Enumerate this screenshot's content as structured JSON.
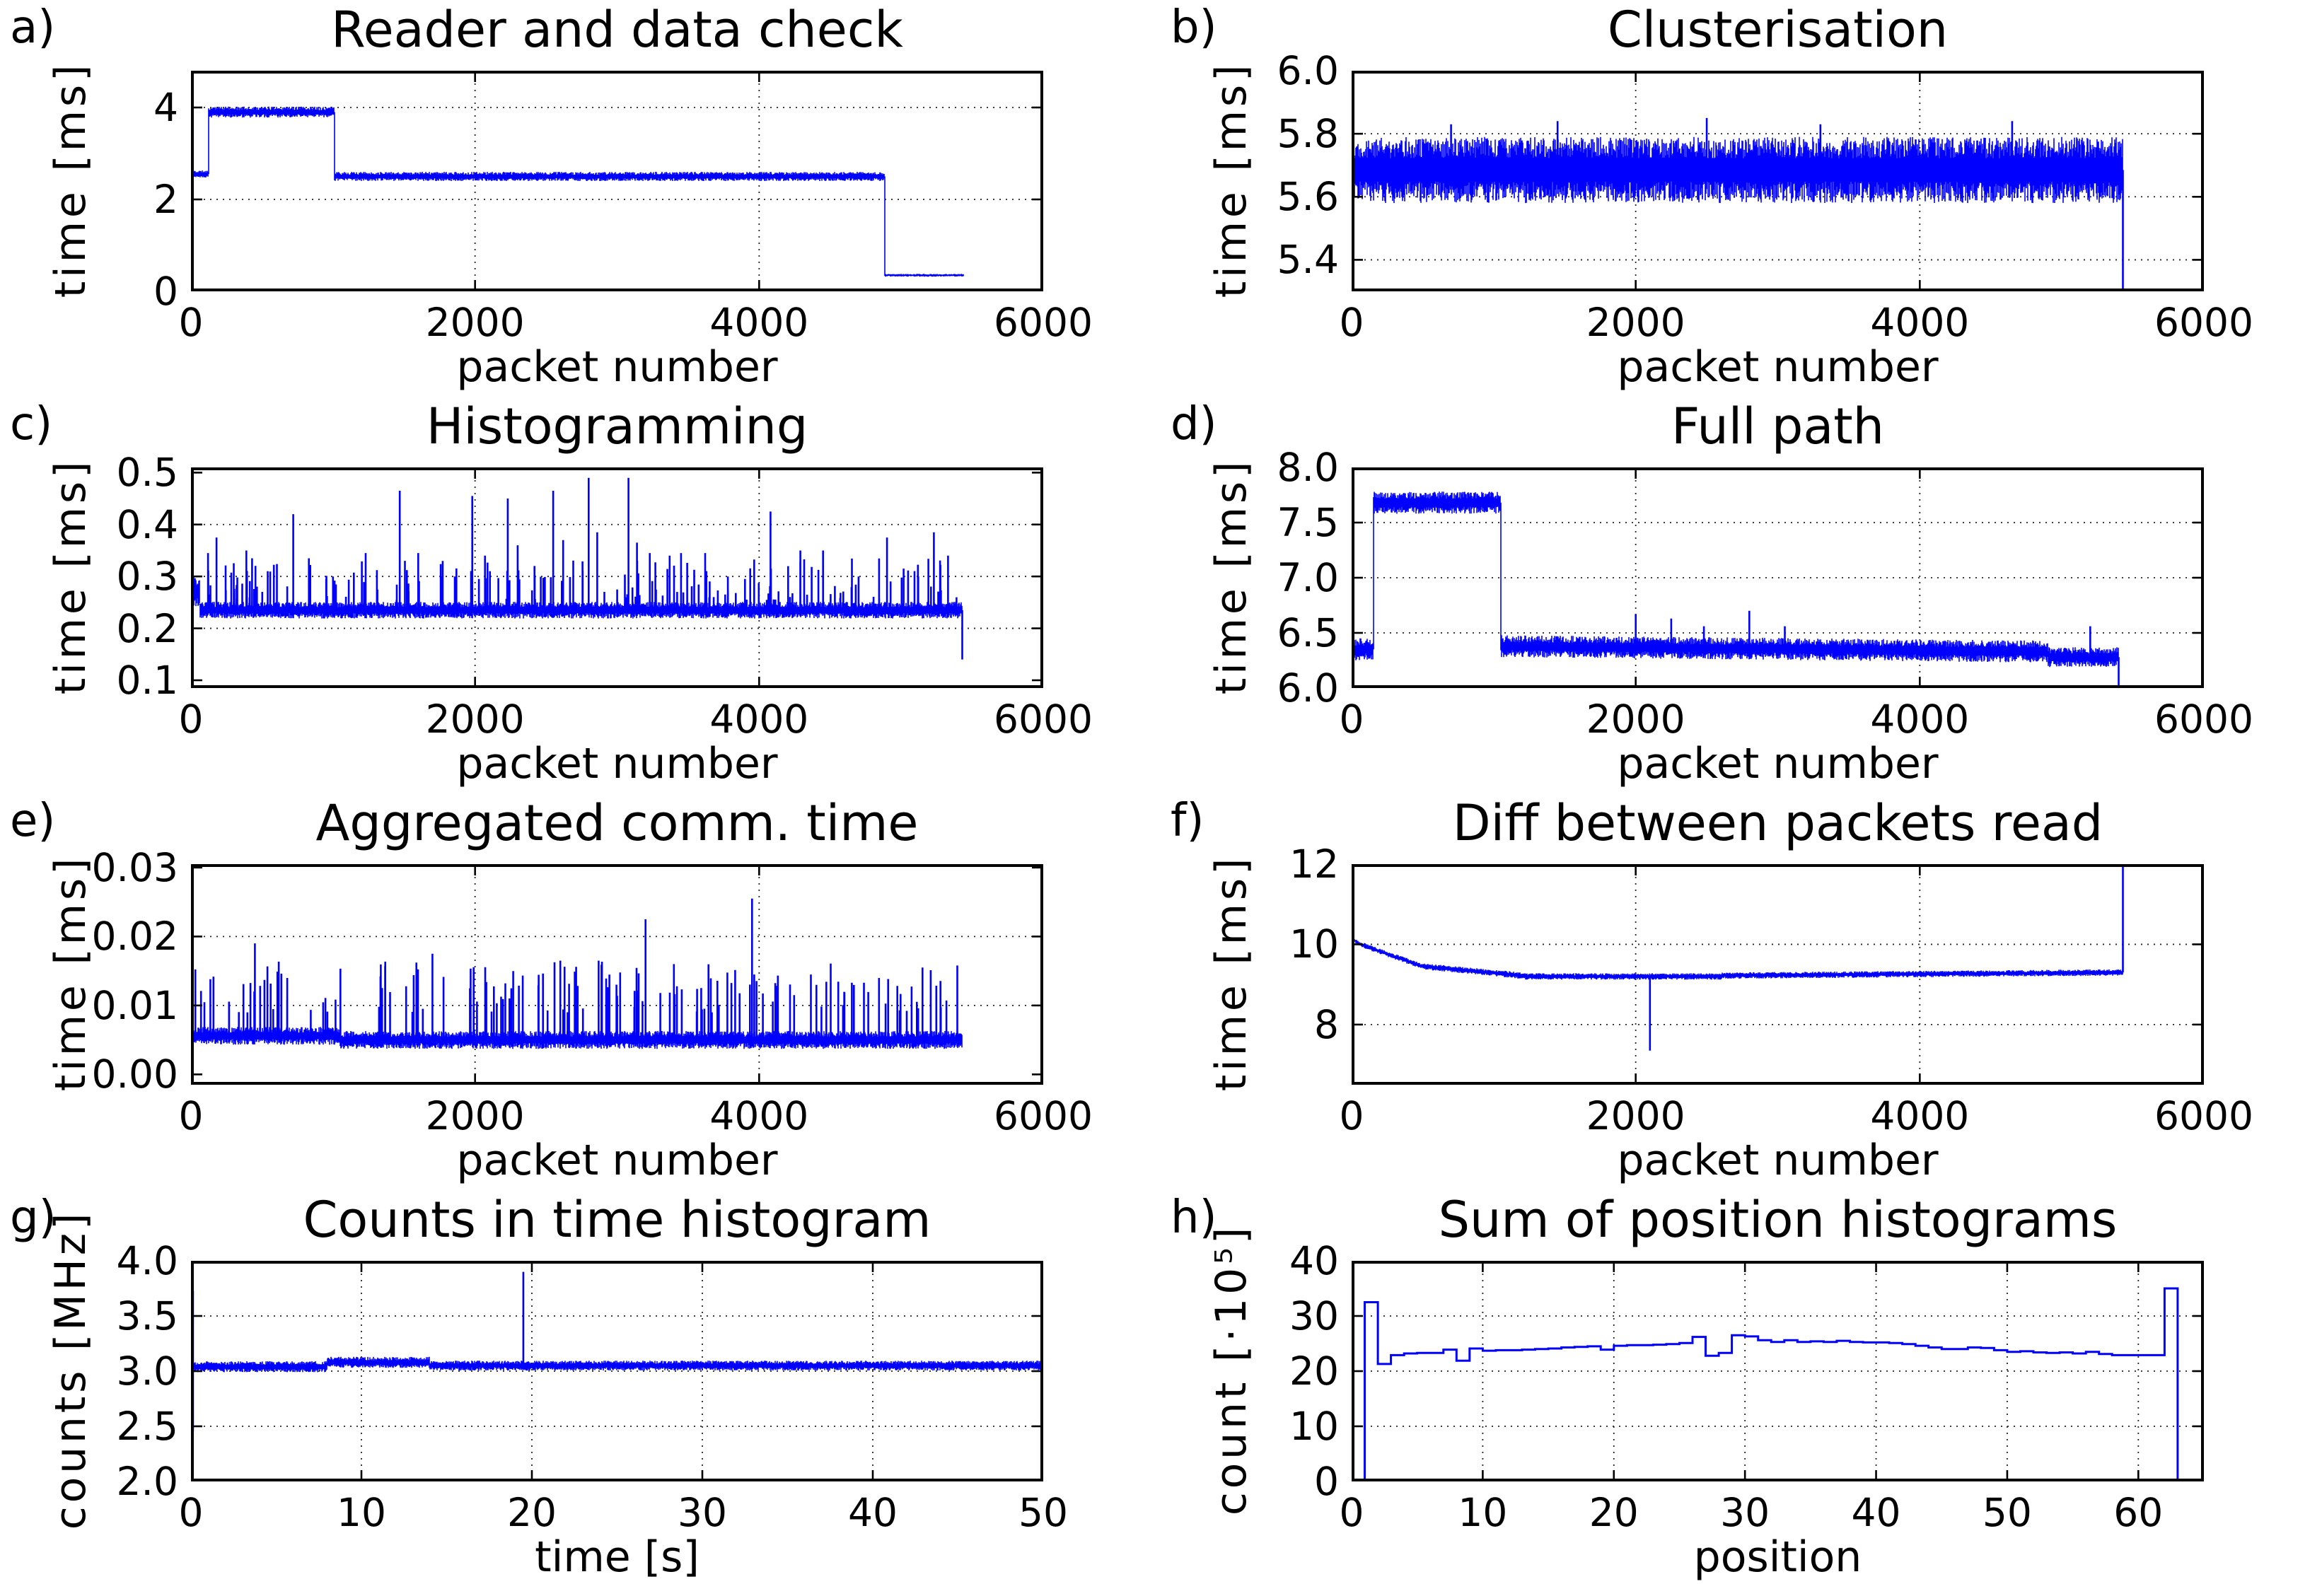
{
  "figure": {
    "background": "#ffffff",
    "line_color": "#0000ff",
    "axis_color": "#000000",
    "grid_color": "#000000",
    "text_color": "#000000"
  },
  "chart_data": [
    {
      "id": "a",
      "panel_label": "a)",
      "type": "line",
      "title": "Reader and data check",
      "xlabel": "packet number",
      "ylabel": "time [ms]",
      "xlim": [
        0,
        6000
      ],
      "ylim": [
        0,
        4.8
      ],
      "xticks": {
        "values": [
          0,
          2000,
          4000,
          6000
        ],
        "labels": [
          "0",
          "2000",
          "4000",
          "6000"
        ]
      },
      "yticks": {
        "values": [
          0,
          2,
          4
        ],
        "labels": [
          "0",
          "2",
          "4"
        ]
      },
      "xgrid": [
        2000,
        4000
      ],
      "ygrid": [
        2,
        4
      ],
      "seed": 11,
      "segments": [
        {
          "x0": 0,
          "x1": 120,
          "mean": 2.55,
          "amp": 0.08
        },
        {
          "x0": 120,
          "x1": 1010,
          "mean": 3.9,
          "amp": 0.12
        },
        {
          "x0": 1010,
          "x1": 4880,
          "mean": 2.5,
          "amp": 0.1
        },
        {
          "x0": 4880,
          "x1": 5440,
          "mean": 0.35,
          "amp": 0.03
        }
      ],
      "spikes": []
    },
    {
      "id": "b",
      "panel_label": "b)",
      "type": "line",
      "title": "Clusterisation",
      "xlabel": "packet number",
      "ylabel": "time [ms]",
      "xlim": [
        0,
        6000
      ],
      "ylim": [
        5.3,
        6.0
      ],
      "xticks": {
        "values": [
          0,
          2000,
          4000,
          6000
        ],
        "labels": [
          "0",
          "2000",
          "4000",
          "6000"
        ]
      },
      "yticks": {
        "values": [
          5.4,
          5.6,
          5.8,
          6.0
        ],
        "labels": [
          "5.4",
          "5.6",
          "5.8",
          "6.0"
        ]
      },
      "xgrid": [
        2000,
        4000
      ],
      "ygrid": [
        5.4,
        5.6,
        5.8
      ],
      "seed": 22,
      "segments": [
        {
          "x0": 0,
          "x1": 5430,
          "mean": 5.685,
          "amp": 0.105
        }
      ],
      "spikes": [
        [
          700,
          5.83
        ],
        [
          1450,
          5.84
        ],
        [
          2500,
          5.85
        ],
        [
          3300,
          5.83
        ],
        [
          4650,
          5.84
        ]
      ],
      "end_drop": [
        5430,
        5.3
      ]
    },
    {
      "id": "c",
      "panel_label": "c)",
      "type": "line",
      "title": "Histogramming",
      "xlabel": "packet number",
      "ylabel": "time [ms]",
      "xlim": [
        0,
        6000
      ],
      "ylim": [
        0.085,
        0.51
      ],
      "xticks": {
        "values": [
          0,
          2000,
          4000,
          6000
        ],
        "labels": [
          "0",
          "2000",
          "4000",
          "6000"
        ]
      },
      "yticks": {
        "values": [
          0.1,
          0.2,
          0.3,
          0.4,
          0.5
        ],
        "labels": [
          "0.1",
          "0.2",
          "0.3",
          "0.4",
          "0.5"
        ]
      },
      "xgrid": [
        2000,
        4000
      ],
      "ygrid": [
        0.2,
        0.3,
        0.4
      ],
      "seed": 33,
      "segments": [
        {
          "x0": 0,
          "x1": 60,
          "mean": 0.27,
          "amp": 0.03
        },
        {
          "x0": 60,
          "x1": 5430,
          "mean": 0.235,
          "amp": 0.016
        }
      ],
      "minor_spikes": {
        "count": 150,
        "x0": 60,
        "x1": 5390,
        "ymin": 0.255,
        "ymax": 0.335
      },
      "spikes": [
        [
          120,
          0.345
        ],
        [
          180,
          0.375
        ],
        [
          390,
          0.35
        ],
        [
          430,
          0.335
        ],
        [
          540,
          0.31
        ],
        [
          720,
          0.42
        ],
        [
          830,
          0.335
        ],
        [
          1000,
          0.3
        ],
        [
          1230,
          0.345
        ],
        [
          1470,
          0.465
        ],
        [
          1600,
          0.345
        ],
        [
          1760,
          0.3
        ],
        [
          1980,
          0.455
        ],
        [
          2070,
          0.34
        ],
        [
          2230,
          0.45
        ],
        [
          2300,
          0.36
        ],
        [
          2420,
          0.3
        ],
        [
          2550,
          0.465
        ],
        [
          2620,
          0.37
        ],
        [
          2800,
          0.49
        ],
        [
          2860,
          0.385
        ],
        [
          3080,
          0.49
        ],
        [
          3140,
          0.365
        ],
        [
          3230,
          0.345
        ],
        [
          3370,
          0.34
        ],
        [
          3450,
          0.345
        ],
        [
          3620,
          0.345
        ],
        [
          3780,
          0.3
        ],
        [
          3900,
          0.295
        ],
        [
          4080,
          0.425
        ],
        [
          4290,
          0.35
        ],
        [
          4450,
          0.35
        ],
        [
          4700,
          0.3
        ],
        [
          4900,
          0.375
        ],
        [
          5120,
          0.3
        ],
        [
          5230,
          0.385
        ],
        [
          5330,
          0.34
        ]
      ],
      "end_drop": [
        5430,
        0.14
      ]
    },
    {
      "id": "d",
      "panel_label": "d)",
      "type": "line",
      "title": "Full path",
      "xlabel": "packet number",
      "ylabel": "time [ms]",
      "xlim": [
        0,
        6000
      ],
      "ylim": [
        6.0,
        8.0
      ],
      "xticks": {
        "values": [
          0,
          2000,
          4000,
          6000
        ],
        "labels": [
          "0",
          "2000",
          "4000",
          "6000"
        ]
      },
      "yticks": {
        "values": [
          6.0,
          6.5,
          7.0,
          7.5,
          8.0
        ],
        "labels": [
          "6.0",
          "6.5",
          "7.0",
          "7.5",
          "8.0"
        ]
      },
      "xgrid": [
        2000,
        4000
      ],
      "ygrid": [
        6.5,
        7.0,
        7.5
      ],
      "seed": 44,
      "segments": [
        {
          "x0": 0,
          "x1": 150,
          "mean": 6.35,
          "amp": 0.1
        },
        {
          "x0": 150,
          "x1": 1050,
          "mean": 7.68,
          "amp": 0.1
        },
        {
          "x0": 1050,
          "x1": 4900,
          "mean_from": 6.38,
          "mean_to": 6.33,
          "amp": 0.1
        },
        {
          "x0": 4900,
          "x1": 5400,
          "mean": 6.28,
          "amp": 0.09
        }
      ],
      "spikes": [
        [
          2000,
          6.67
        ],
        [
          2250,
          6.63
        ],
        [
          2480,
          6.56
        ],
        [
          2800,
          6.7
        ],
        [
          3050,
          6.56
        ],
        [
          5200,
          6.56
        ]
      ],
      "end_drop": [
        5400,
        6.0
      ]
    },
    {
      "id": "e",
      "panel_label": "e)",
      "type": "line",
      "title": "Aggregated comm. time",
      "xlabel": "packet number",
      "ylabel": "time [ms]",
      "xlim": [
        0,
        6000
      ],
      "ylim": [
        -0.0015,
        0.0305
      ],
      "xticks": {
        "values": [
          0,
          2000,
          4000,
          6000
        ],
        "labels": [
          "0",
          "2000",
          "4000",
          "6000"
        ]
      },
      "yticks": {
        "values": [
          0.0,
          0.01,
          0.02,
          0.03
        ],
        "labels": [
          "0.00",
          "0.01",
          "0.02",
          "0.03"
        ]
      },
      "xgrid": [
        2000,
        4000
      ],
      "ygrid": [
        0.01,
        0.02
      ],
      "seed": 55,
      "segments": [
        {
          "x0": 0,
          "x1": 1050,
          "mean": 0.0056,
          "amp": 0.0013
        },
        {
          "x0": 1050,
          "x1": 5430,
          "mean": 0.005,
          "amp": 0.0013
        }
      ],
      "minor_spikes": {
        "count": 150,
        "x0": 20,
        "x1": 5420,
        "ymin": 0.009,
        "ymax": 0.0165
      },
      "spikes": [
        [
          450,
          0.019
        ],
        [
          1700,
          0.0175
        ],
        [
          2600,
          0.0165
        ],
        [
          2870,
          0.0165
        ],
        [
          3200,
          0.0225
        ],
        [
          3400,
          0.016
        ],
        [
          3950,
          0.0255
        ],
        [
          5150,
          0.0155
        ]
      ]
    },
    {
      "id": "f",
      "panel_label": "f)",
      "type": "line",
      "title": "Diff between packets read",
      "xlabel": "packet number",
      "ylabel": "time [ms]",
      "xlim": [
        0,
        6000
      ],
      "ylim": [
        6.5,
        12
      ],
      "xticks": {
        "values": [
          0,
          2000,
          4000,
          6000
        ],
        "labels": [
          "0",
          "2000",
          "4000",
          "6000"
        ]
      },
      "yticks": {
        "values": [
          8,
          10,
          12
        ],
        "labels": [
          "8",
          "10",
          "12"
        ]
      },
      "xgrid": [
        2000,
        4000
      ],
      "ygrid": [
        8,
        10
      ],
      "seed": 66,
      "segments": [
        {
          "x0": 0,
          "x1": 60,
          "mean_from": 10.15,
          "mean_to": 10.0,
          "amp": 0.05
        },
        {
          "x0": 60,
          "x1": 500,
          "mean_from": 10.0,
          "mean_to": 9.45,
          "amp": 0.07
        },
        {
          "x0": 500,
          "x1": 1200,
          "mean_from": 9.45,
          "mean_to": 9.22,
          "amp": 0.08
        },
        {
          "x0": 1200,
          "x1": 2600,
          "mean": 9.2,
          "amp": 0.08
        },
        {
          "x0": 2600,
          "x1": 5430,
          "mean_from": 9.22,
          "mean_to": 9.3,
          "amp": 0.08
        }
      ],
      "spikes": [
        [
          2100,
          7.35
        ],
        [
          5430,
          12.0
        ]
      ]
    },
    {
      "id": "g",
      "panel_label": "g)",
      "type": "line",
      "title": "Counts in time histogram",
      "xlabel": "time [s]",
      "ylabel": "counts [MHz]",
      "xlim": [
        0,
        50
      ],
      "ylim": [
        2.0,
        4.0
      ],
      "xticks": {
        "values": [
          0,
          10,
          20,
          30,
          40,
          50
        ],
        "labels": [
          "0",
          "10",
          "20",
          "30",
          "40",
          "50"
        ]
      },
      "yticks": {
        "values": [
          2.0,
          2.5,
          3.0,
          3.5,
          4.0
        ],
        "labels": [
          "2.0",
          "2.5",
          "3.0",
          "3.5",
          "4.0"
        ]
      },
      "xgrid": [
        10,
        20,
        30,
        40
      ],
      "ygrid": [
        2.5,
        3.0,
        3.5
      ],
      "seed": 77,
      "segments": [
        {
          "x0": 0,
          "x1": 8,
          "mean": 3.04,
          "amp": 0.05
        },
        {
          "x0": 8,
          "x1": 14,
          "mean": 3.08,
          "amp": 0.05
        },
        {
          "x0": 14,
          "x1": 50,
          "mean": 3.05,
          "amp": 0.045
        }
      ],
      "spikes": [
        [
          0.12,
          3.73,
          2.45
        ],
        [
          19.5,
          3.9
        ]
      ]
    },
    {
      "id": "h",
      "panel_label": "h)",
      "type": "step",
      "title": "Sum of position histograms",
      "xlabel": "position",
      "ylabel": "count [·10⁵]",
      "xlim": [
        0,
        65
      ],
      "ylim": [
        0,
        40
      ],
      "xticks": {
        "values": [
          0,
          10,
          20,
          30,
          40,
          50,
          60
        ],
        "labels": [
          "0",
          "10",
          "20",
          "30",
          "40",
          "50",
          "60"
        ]
      },
      "yticks": {
        "values": [
          0,
          10,
          20,
          30,
          40
        ],
        "labels": [
          "0",
          "10",
          "20",
          "30",
          "40"
        ]
      },
      "xgrid": [
        10,
        20,
        30,
        40,
        50,
        60
      ],
      "ygrid": [
        10,
        20,
        30
      ],
      "bin_start": 0,
      "bin_width": 1,
      "values": [
        0,
        32.5,
        21.3,
        22.9,
        23.2,
        23.3,
        23.3,
        23.9,
        21.9,
        24.1,
        23.7,
        23.8,
        23.8,
        23.9,
        24.0,
        24.1,
        24.3,
        24.4,
        24.5,
        23.9,
        24.6,
        24.7,
        24.7,
        24.8,
        24.9,
        25.1,
        26.2,
        22.8,
        23.3,
        26.5,
        26.3,
        25.6,
        25.3,
        25.6,
        25.3,
        25.4,
        25.3,
        25.5,
        25.3,
        25.2,
        25.2,
        25.1,
        24.9,
        24.6,
        24.3,
        24.0,
        24.0,
        24.3,
        24.2,
        23.8,
        23.5,
        23.6,
        23.4,
        23.3,
        23.4,
        23.2,
        23.5,
        23.1,
        22.9,
        22.9,
        22.9,
        22.9,
        35.0,
        0,
        0
      ]
    }
  ]
}
